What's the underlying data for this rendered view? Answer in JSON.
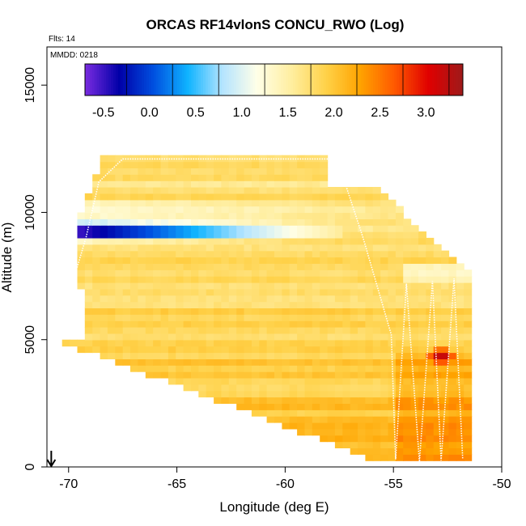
{
  "chart_data": {
    "type": "heatmap",
    "title": "ORCAS RF14vlonS CONCU_RWO (Log)",
    "flights_label": "Flts: 14",
    "date_label": "MMDD: 0218",
    "xlabel": "Longitude (deg E)",
    "ylabel": "Altitude (m)",
    "xlim": [
      -71,
      -50
    ],
    "ylim": [
      0,
      16500
    ],
    "x_ticks": [
      -70,
      -65,
      -60,
      -55,
      -50
    ],
    "y_ticks": [
      0,
      5000,
      10000,
      15000
    ],
    "x_tick_labels": [
      "-70",
      "-65",
      "-60",
      "-55",
      "-50"
    ],
    "y_tick_labels": [
      "0",
      "5000",
      "10000",
      "15000"
    ],
    "colorbar": {
      "range": [
        -0.7,
        3.4
      ],
      "ticks": [
        -0.5,
        0.0,
        0.5,
        1.0,
        1.5,
        2.0,
        2.5,
        3.0
      ],
      "tick_labels": [
        "-0.5",
        "0.0",
        "0.5",
        "1.0",
        "1.5",
        "2.0",
        "2.5",
        "3.0"
      ],
      "colors": [
        "#7a2be0",
        "#0000a8",
        "#0050e0",
        "#10b4ff",
        "#b4e4ff",
        "#ffffe8",
        "#ffeea0",
        "#ffd24a",
        "#ffa400",
        "#ff5a00",
        "#e00000",
        "#9e1a1a"
      ]
    },
    "field": {
      "description": "log10 concentration, typical values",
      "background_value": 1.9,
      "low_layer": {
        "altitude_m": 9200,
        "min_value": -0.5,
        "lon_start": -69.5,
        "lon_end": -57.2
      },
      "hotspot": {
        "lon": -52.8,
        "altitude_m": 4400,
        "value": 3.2
      }
    },
    "flight_track": [
      [
        -70.6,
        5000
      ],
      [
        -69.2,
        9000
      ],
      [
        -68.6,
        11200
      ],
      [
        -67.5,
        12100
      ],
      [
        -57.6,
        12100
      ],
      [
        -56.4,
        9000
      ],
      [
        -55.1,
        5200
      ],
      [
        -54.9,
        300
      ],
      [
        -54.4,
        7200
      ],
      [
        -53.8,
        200
      ],
      [
        -53.2,
        7300
      ],
      [
        -52.8,
        250
      ],
      [
        -52.2,
        7400
      ],
      [
        -51.8,
        300
      ]
    ],
    "arrow": {
      "lon": -70.8,
      "direction": "down"
    }
  }
}
